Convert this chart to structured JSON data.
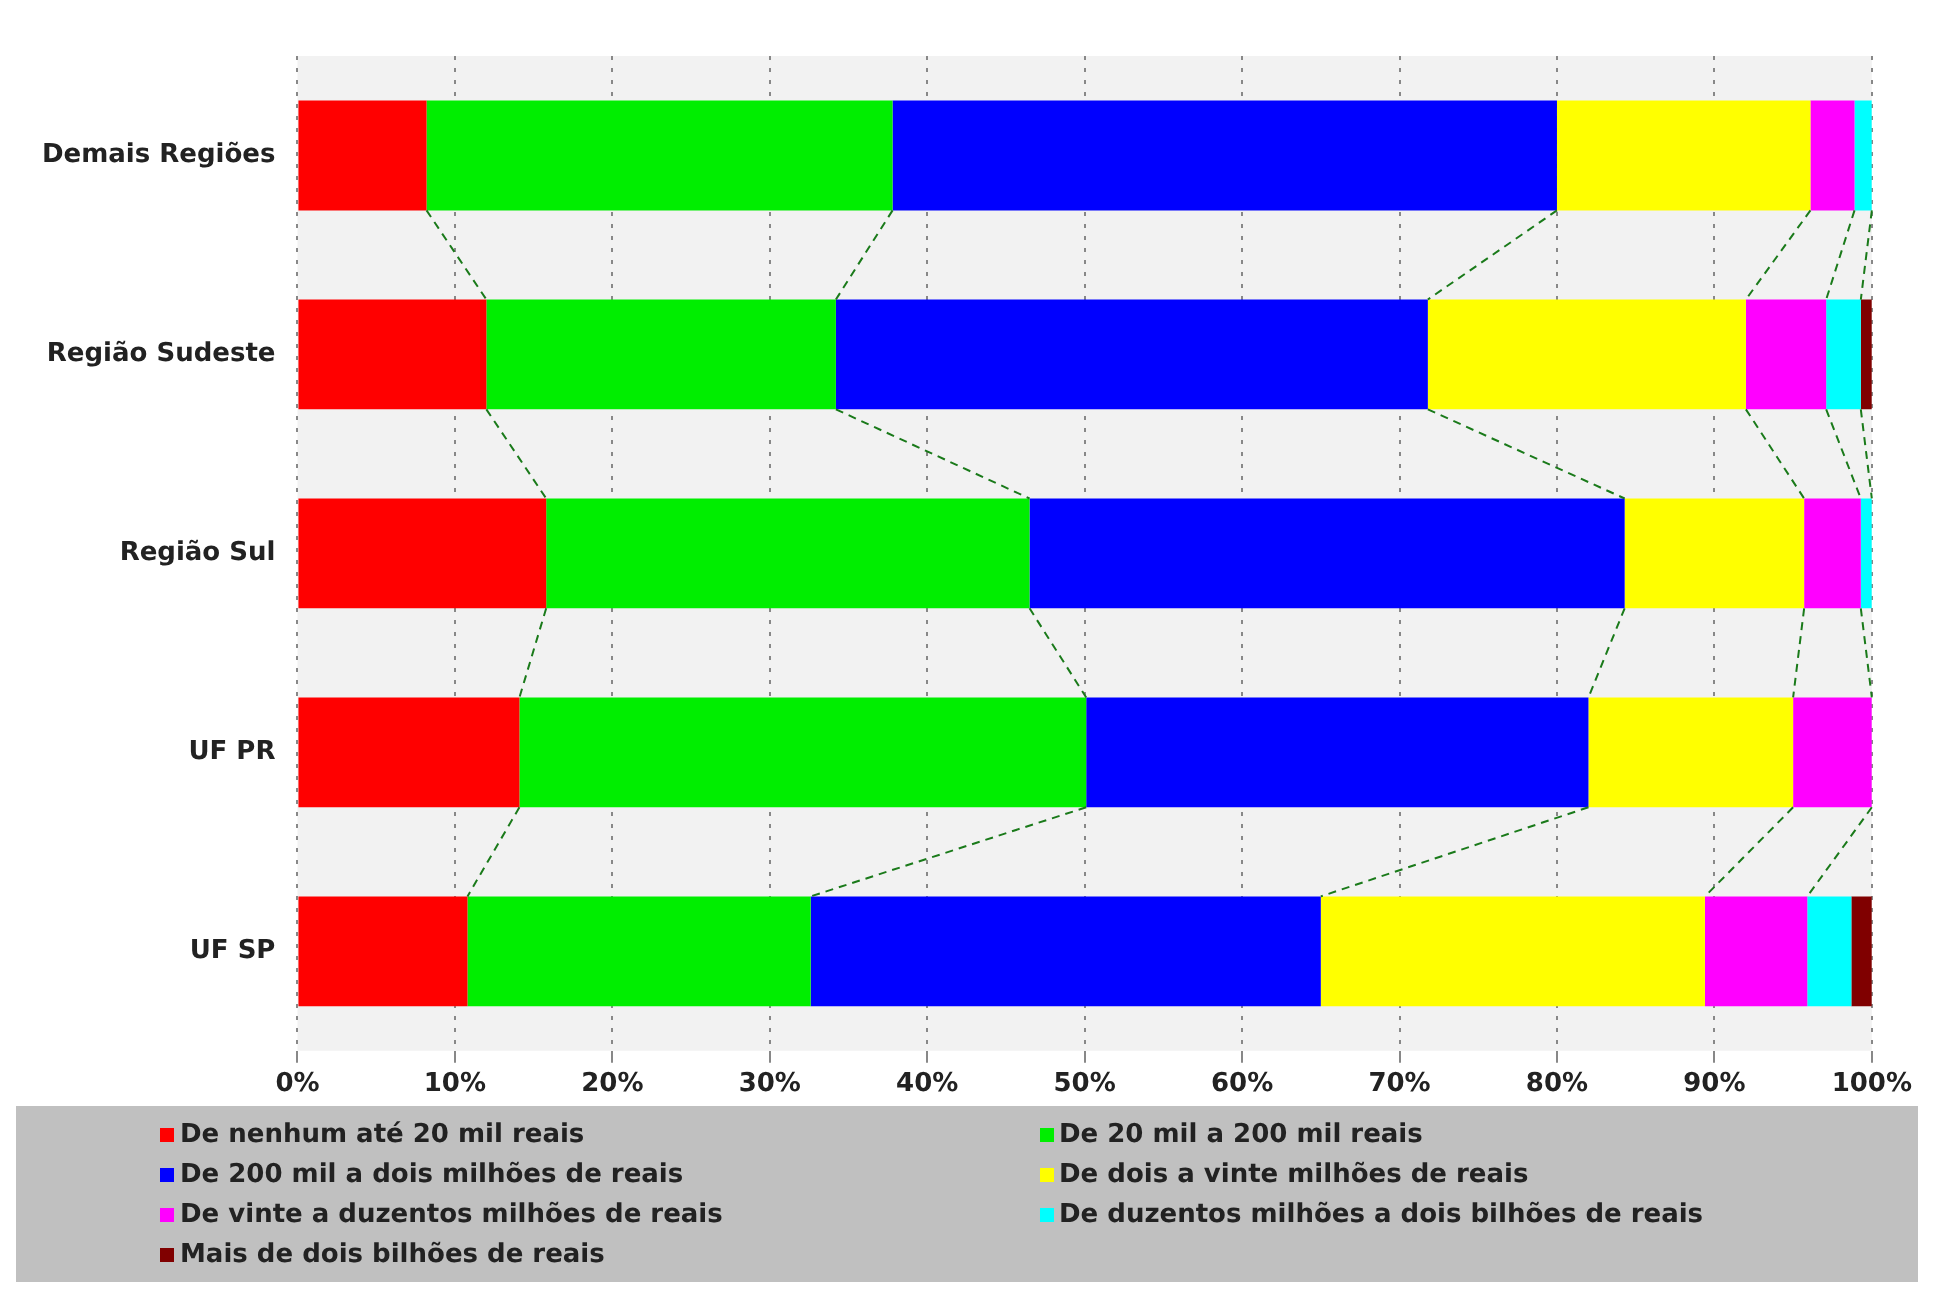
{
  "chart_data": {
    "type": "bar",
    "orientation": "horizontal",
    "stacked": true,
    "categories": [
      "Demais Regiões",
      "Região Sudeste",
      "Região Sul",
      "UF PR",
      "UF SP"
    ],
    "series": [
      {
        "name": "De nenhum até 20 mil reais",
        "color": "#ff0000",
        "values": [
          8.2,
          12.0,
          15.8,
          14.1,
          10.8
        ]
      },
      {
        "name": "De 20 mil a 200 mil reais",
        "color": "#00ee00",
        "values": [
          29.6,
          22.2,
          30.7,
          36.0,
          21.8
        ]
      },
      {
        "name": "De 200 mil a dois milhões de reais",
        "color": "#0000ff",
        "values": [
          42.2,
          37.6,
          37.8,
          31.9,
          32.4
        ]
      },
      {
        "name": "De dois a vinte milhões de reais",
        "color": "#ffff00",
        "values": [
          16.1,
          20.2,
          11.4,
          13.0,
          24.4
        ]
      },
      {
        "name": "De vinte a duzentos milhões de reais",
        "color": "#ff00ff",
        "values": [
          2.8,
          5.1,
          3.6,
          5.0,
          6.5
        ]
      },
      {
        "name": "De duzentos milhões a dois bilhões de reais",
        "color": "#00ffff",
        "values": [
          1.1,
          2.2,
          0.7,
          0,
          2.8
        ]
      },
      {
        "name": "Mais de dois bilhões de reais",
        "color": "#800000",
        "values": [
          0,
          0.7,
          0,
          0,
          1.3
        ]
      }
    ],
    "xlim": [
      0,
      100
    ],
    "xticks": [
      {
        "value": 0,
        "label": "0%"
      },
      {
        "value": 10,
        "label": "10%"
      },
      {
        "value": 20,
        "label": "20%"
      },
      {
        "value": 30,
        "label": "30%"
      },
      {
        "value": 40,
        "label": "40%"
      },
      {
        "value": 50,
        "label": "50%"
      },
      {
        "value": 60,
        "label": "60%"
      },
      {
        "value": 70,
        "label": "70%"
      },
      {
        "value": 80,
        "label": "80%"
      },
      {
        "value": 90,
        "label": "90%"
      },
      {
        "value": 100,
        "label": "100%"
      }
    ],
    "grid": "x",
    "legend": "bottom"
  }
}
